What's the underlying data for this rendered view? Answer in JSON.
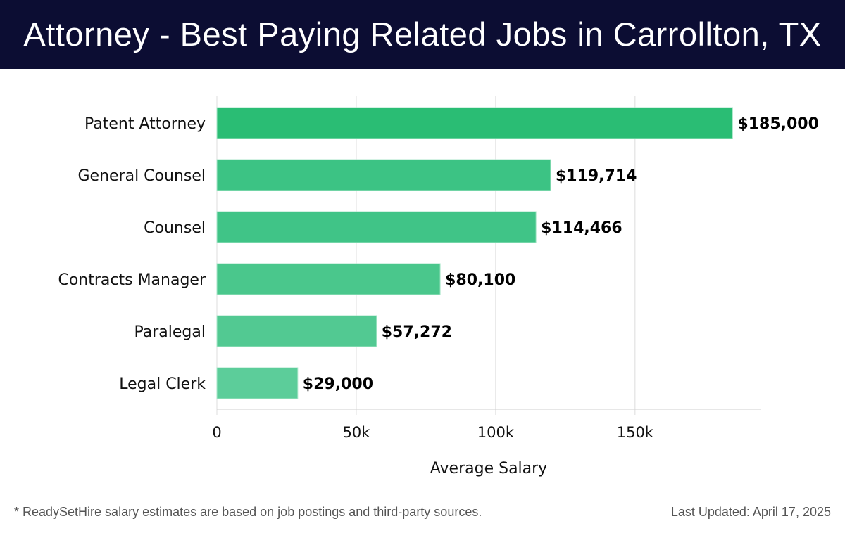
{
  "header": {
    "title": "Attorney - Best Paying Related Jobs in Carrollton, TX"
  },
  "chart_data": {
    "type": "bar",
    "orientation": "horizontal",
    "title": "Attorney - Best Paying Related Jobs in Carrollton, TX",
    "xlabel": "Average Salary",
    "ylabel": "",
    "categories": [
      "Patent Attorney",
      "General Counsel",
      "Counsel",
      "Contracts Manager",
      "Paralegal",
      "Legal Clerk"
    ],
    "values": [
      185000,
      119714,
      114466,
      80100,
      57272,
      29000
    ],
    "data_labels": [
      "$185,000",
      "$119,714",
      "$114,466",
      "$80,100",
      "$57,272",
      "$29,000"
    ],
    "xticks": [
      0,
      50000,
      100000,
      150000
    ],
    "xtick_labels": [
      "0",
      "50k",
      "100k",
      "150k"
    ],
    "xlim": [
      0,
      195000
    ],
    "grid": true,
    "colors": [
      "#2abd74",
      "#3cc384",
      "#40c487",
      "#4ac78c",
      "#52c992",
      "#5ccd9a"
    ]
  },
  "footer": {
    "note": "* ReadySetHire salary estimates are based on job postings and third-party sources.",
    "updated": "Last Updated: April 17, 2025"
  }
}
